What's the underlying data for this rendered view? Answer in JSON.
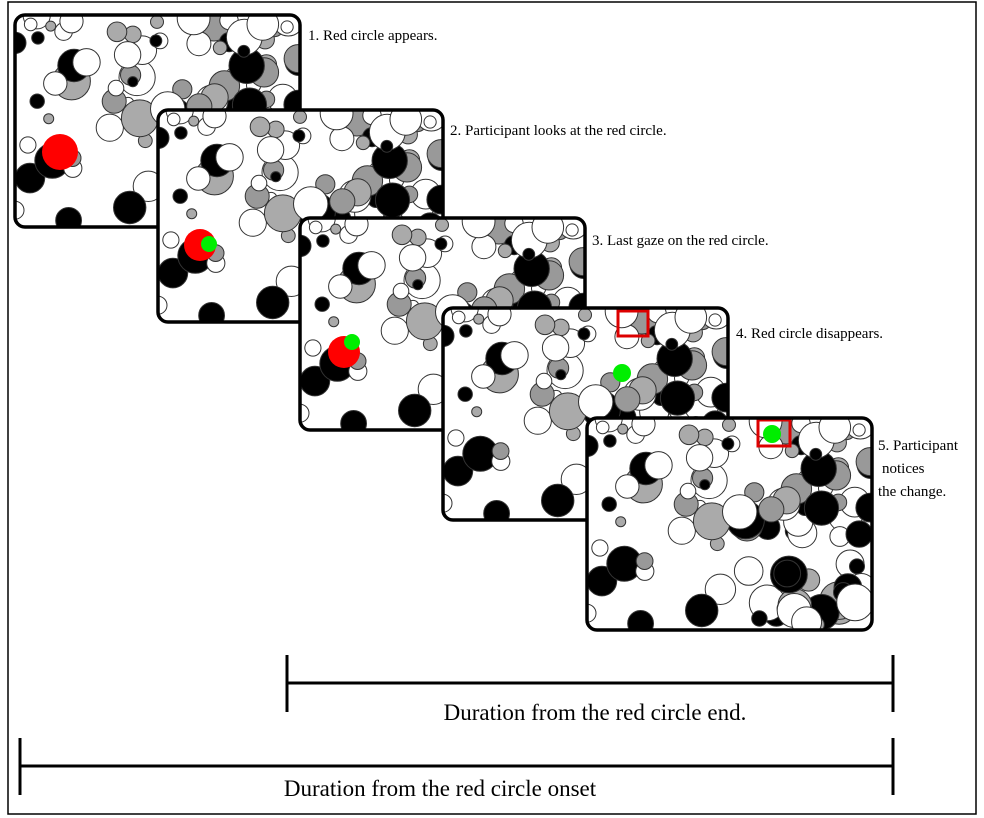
{
  "steps": [
    {
      "lines": [
        "1. Red circle appears."
      ]
    },
    {
      "lines": [
        "2. Participant looks at the red circle."
      ]
    },
    {
      "lines": [
        "3. Last gaze on the red circle."
      ]
    },
    {
      "lines": [
        "4. Red circle disappears."
      ]
    },
    {
      "lines": [
        "5. Participant",
        "notices",
        "the change."
      ]
    }
  ],
  "durations": [
    {
      "label": "Duration from the red circle end."
    },
    {
      "label": "Duration from the red circle onset"
    }
  ]
}
